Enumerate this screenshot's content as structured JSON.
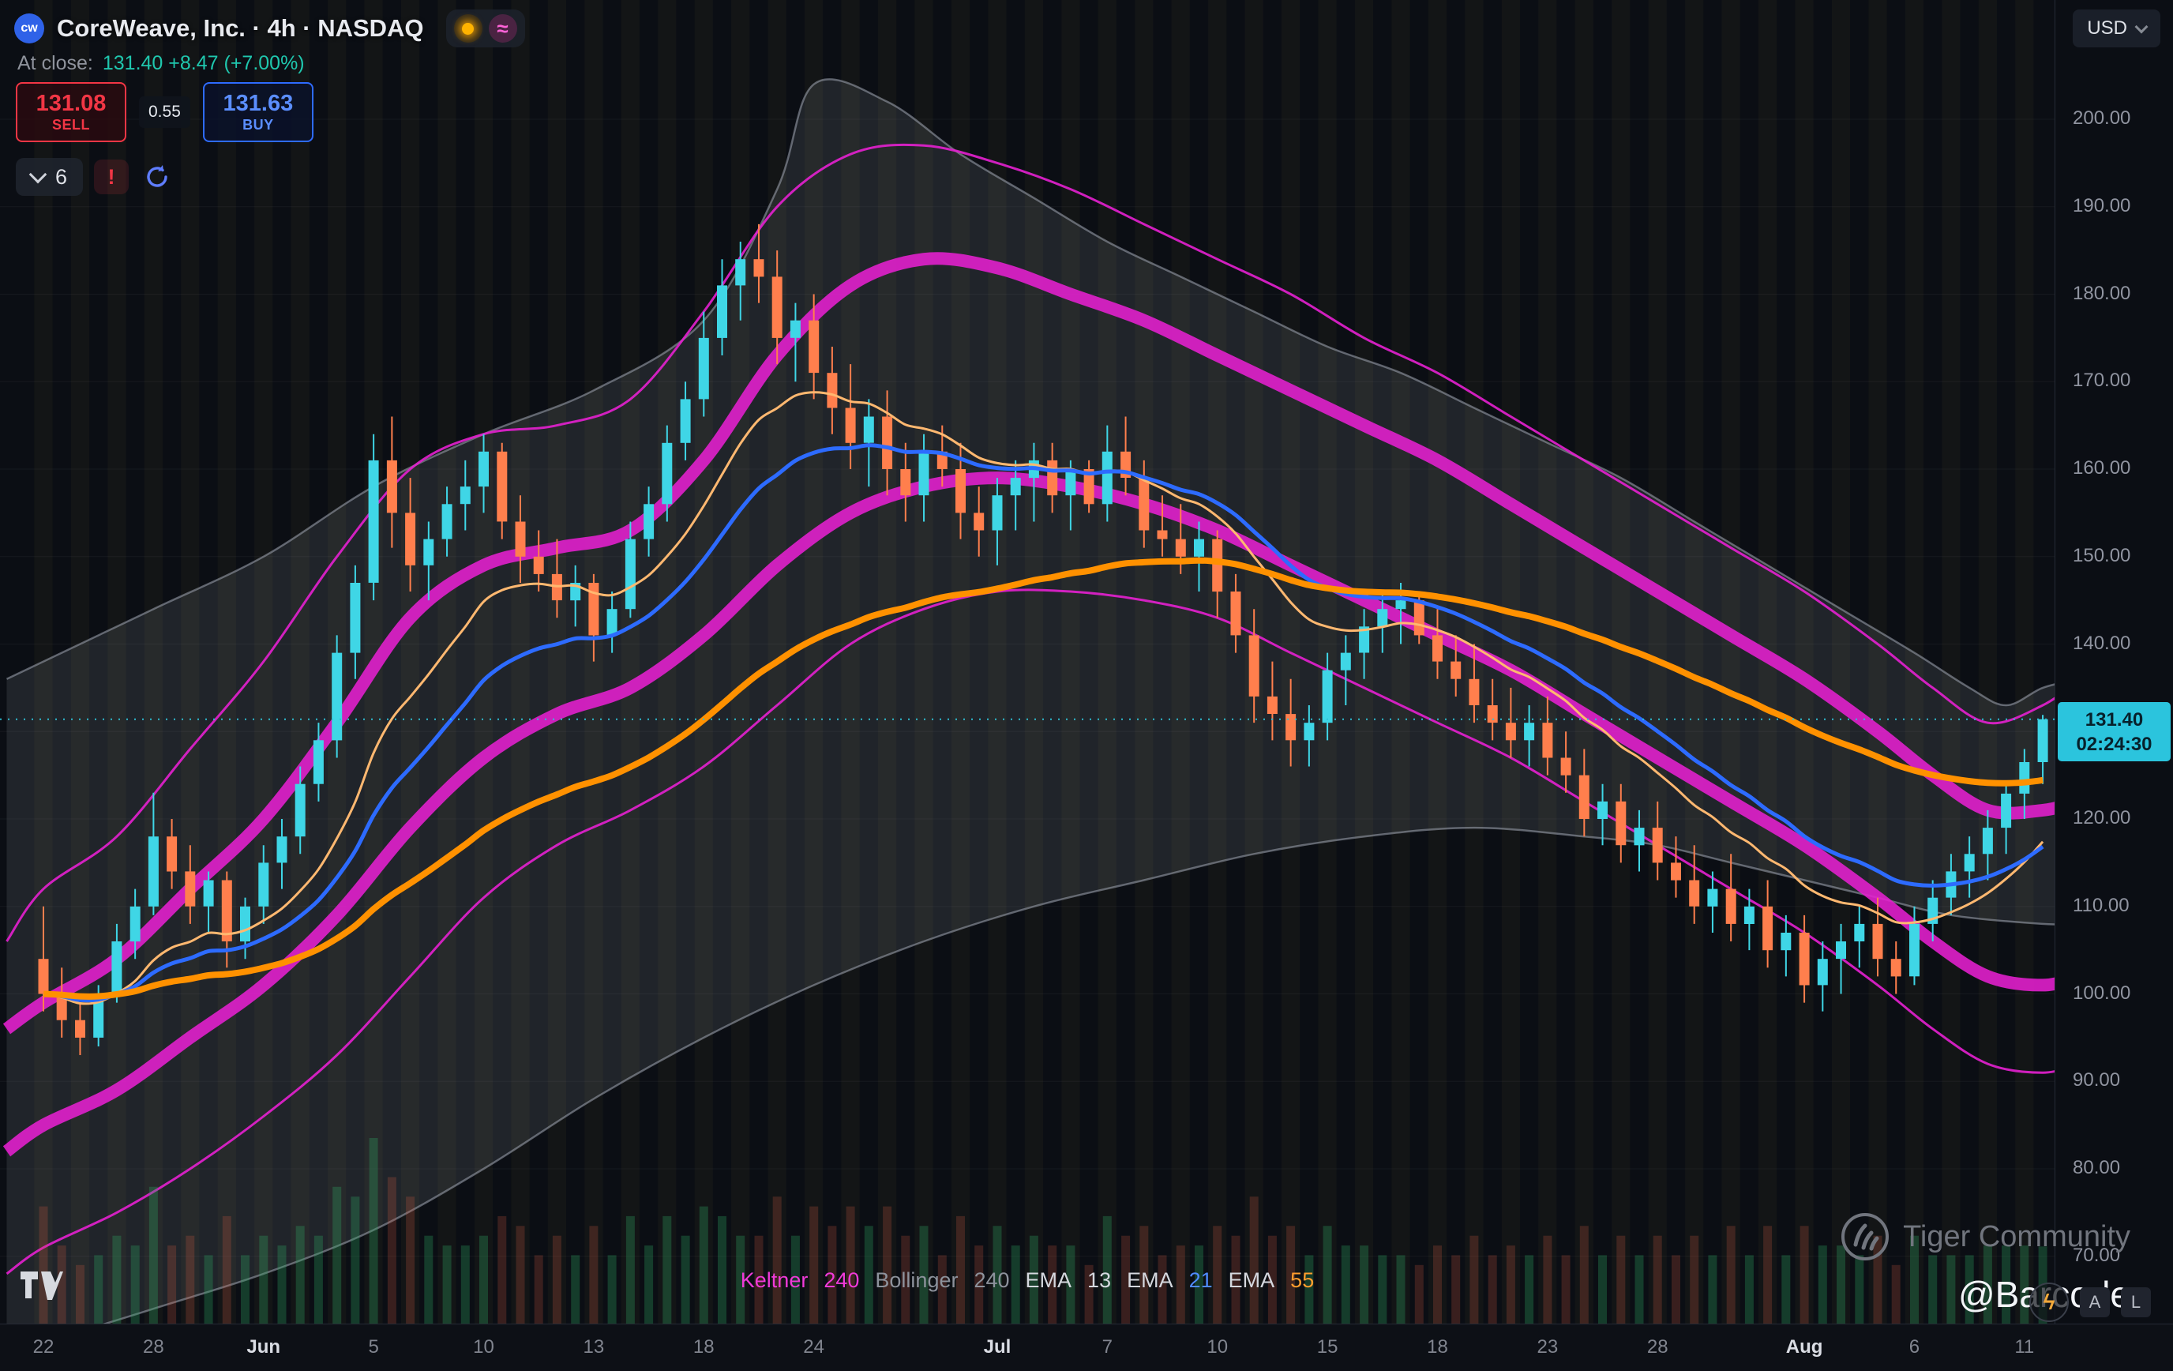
{
  "header": {
    "logo_text": "cw",
    "symbol_title": "CoreWeave, Inc. · 4h · NASDAQ",
    "at_close_label": "At close:",
    "close_summary": "131.40 +8.47 (+7.00%)",
    "sell_price": "131.08",
    "sell_label": "SELL",
    "spread": "0.55",
    "buy_price": "131.63",
    "buy_label": "BUY",
    "indicator_count": "6",
    "warning_glyph": "!",
    "currency": "USD"
  },
  "price_scale": {
    "ticks": [
      200,
      190,
      180,
      170,
      160,
      150,
      140,
      130,
      120,
      110,
      100,
      90,
      80,
      70
    ],
    "current": {
      "price": "131.40",
      "countdown": "02:24:30"
    }
  },
  "time_scale": {
    "ticks": [
      {
        "label": "22",
        "bar": 0
      },
      {
        "label": "28",
        "bar": 6
      },
      {
        "label": "Jun",
        "bar": 12,
        "major": true
      },
      {
        "label": "5",
        "bar": 18
      },
      {
        "label": "10",
        "bar": 24
      },
      {
        "label": "13",
        "bar": 30
      },
      {
        "label": "18",
        "bar": 36
      },
      {
        "label": "24",
        "bar": 42
      },
      {
        "label": "Jul",
        "bar": 52,
        "major": true
      },
      {
        "label": "7",
        "bar": 58
      },
      {
        "label": "10",
        "bar": 64
      },
      {
        "label": "15",
        "bar": 70
      },
      {
        "label": "18",
        "bar": 76
      },
      {
        "label": "23",
        "bar": 82
      },
      {
        "label": "28",
        "bar": 88
      },
      {
        "label": "Aug",
        "bar": 96,
        "major": true
      },
      {
        "label": "6",
        "bar": 102
      },
      {
        "label": "11",
        "bar": 108
      }
    ]
  },
  "legend": {
    "items": [
      {
        "label": "Keltner",
        "color": "#f03ad8"
      },
      {
        "label": "240",
        "color": "#f03ad8"
      },
      {
        "label": "Bollinger",
        "color": "#8d929c"
      },
      {
        "label": "240",
        "color": "#8d929c"
      },
      {
        "label": "EMA",
        "color": "#d5d8df"
      },
      {
        "label": "13",
        "color": "#d5d8df"
      },
      {
        "label": "EMA",
        "color": "#d5d8df"
      },
      {
        "label": "21",
        "color": "#4f8bff"
      },
      {
        "label": "EMA",
        "color": "#d5d8df"
      },
      {
        "label": "55",
        "color": "#ff9d2e"
      }
    ]
  },
  "watermark": {
    "community": "Tiger Community",
    "handle": "@Barcode"
  },
  "corner": {
    "a": "A",
    "l": "L"
  },
  "chart_data": {
    "type": "candlestick",
    "title": "CoreWeave, Inc. 4h with Keltner(240), Bollinger(240), EMA 13/21/55",
    "bar_count": 110,
    "current_price": 131.4,
    "prior_close": 122.93,
    "y_axis": {
      "min": 62,
      "max": 213.5,
      "tick_step": 10
    },
    "colors": {
      "up": "#3fd6e6",
      "down": "#ff7f4d",
      "keltner": "#e620d0",
      "bollinger": "#a3a8b4",
      "ema13": "#ffb870",
      "ema21": "#2d6bff",
      "ema55": "#ff9100",
      "current_line": "#2ec4d9"
    },
    "candles": [
      [
        104,
        110,
        98,
        100
      ],
      [
        100,
        103,
        95,
        97
      ],
      [
        97,
        99,
        93,
        95
      ],
      [
        95,
        101,
        94,
        100
      ],
      [
        100,
        108,
        99,
        106
      ],
      [
        106,
        112,
        104,
        110
      ],
      [
        110,
        123,
        109,
        118
      ],
      [
        118,
        120,
        112,
        114
      ],
      [
        114,
        117,
        108,
        110
      ],
      [
        110,
        114,
        107,
        113
      ],
      [
        113,
        114,
        103,
        106
      ],
      [
        106,
        111,
        104,
        110
      ],
      [
        110,
        117,
        108,
        115
      ],
      [
        115,
        120,
        112,
        118
      ],
      [
        118,
        126,
        116,
        124
      ],
      [
        124,
        131,
        122,
        129
      ],
      [
        129,
        141,
        127,
        139
      ],
      [
        139,
        149,
        136,
        147
      ],
      [
        147,
        164,
        145,
        161
      ],
      [
        161,
        166,
        151,
        155
      ],
      [
        155,
        159,
        146,
        149
      ],
      [
        149,
        154,
        145,
        152
      ],
      [
        152,
        158,
        150,
        156
      ],
      [
        156,
        161,
        153,
        158
      ],
      [
        158,
        164,
        155,
        162
      ],
      [
        162,
        163,
        152,
        154
      ],
      [
        154,
        157,
        147,
        150
      ],
      [
        150,
        153,
        146,
        148
      ],
      [
        148,
        152,
        143,
        145
      ],
      [
        145,
        149,
        142,
        147
      ],
      [
        147,
        148,
        138,
        141
      ],
      [
        141,
        146,
        139,
        144
      ],
      [
        144,
        154,
        143,
        152
      ],
      [
        152,
        158,
        150,
        156
      ],
      [
        156,
        165,
        154,
        163
      ],
      [
        163,
        170,
        161,
        168
      ],
      [
        168,
        178,
        166,
        175
      ],
      [
        175,
        184,
        173,
        181
      ],
      [
        181,
        186,
        177,
        184
      ],
      [
        184,
        188,
        179,
        182
      ],
      [
        182,
        185,
        172,
        175
      ],
      [
        175,
        179,
        170,
        177
      ],
      [
        177,
        180,
        168,
        171
      ],
      [
        171,
        174,
        164,
        167
      ],
      [
        167,
        172,
        160,
        163
      ],
      [
        163,
        168,
        158,
        166
      ],
      [
        166,
        169,
        157,
        160
      ],
      [
        160,
        163,
        154,
        157
      ],
      [
        157,
        164,
        154,
        162
      ],
      [
        162,
        165,
        158,
        160
      ],
      [
        160,
        163,
        152,
        155
      ],
      [
        155,
        158,
        150,
        153
      ],
      [
        153,
        159,
        149,
        157
      ],
      [
        157,
        161,
        153,
        159
      ],
      [
        159,
        163,
        154,
        161
      ],
      [
        161,
        163,
        155,
        157
      ],
      [
        157,
        161,
        153,
        160
      ],
      [
        160,
        161,
        155,
        156
      ],
      [
        156,
        165,
        154,
        162
      ],
      [
        162,
        166,
        157,
        159
      ],
      [
        159,
        161,
        151,
        153
      ],
      [
        153,
        157,
        150,
        152
      ],
      [
        152,
        156,
        148,
        150
      ],
      [
        150,
        154,
        146,
        152
      ],
      [
        152,
        153,
        143,
        146
      ],
      [
        146,
        148,
        139,
        141
      ],
      [
        141,
        144,
        131,
        134
      ],
      [
        134,
        138,
        129,
        132
      ],
      [
        132,
        136,
        126,
        129
      ],
      [
        129,
        133,
        126,
        131
      ],
      [
        131,
        139,
        129,
        137
      ],
      [
        137,
        141,
        133,
        139
      ],
      [
        139,
        144,
        136,
        142
      ],
      [
        142,
        146,
        139,
        144
      ],
      [
        144,
        147,
        140,
        145
      ],
      [
        145,
        146,
        140,
        141
      ],
      [
        141,
        144,
        136,
        138
      ],
      [
        138,
        141,
        134,
        136
      ],
      [
        136,
        140,
        131,
        133
      ],
      [
        133,
        136,
        129,
        131
      ],
      [
        131,
        135,
        127,
        129
      ],
      [
        129,
        133,
        126,
        131
      ],
      [
        131,
        134,
        125,
        127
      ],
      [
        127,
        130,
        123,
        125
      ],
      [
        125,
        128,
        118,
        120
      ],
      [
        120,
        124,
        117,
        122
      ],
      [
        122,
        124,
        115,
        117
      ],
      [
        117,
        121,
        114,
        119
      ],
      [
        119,
        122,
        113,
        115
      ],
      [
        115,
        118,
        111,
        113
      ],
      [
        113,
        117,
        108,
        110
      ],
      [
        110,
        114,
        107,
        112
      ],
      [
        112,
        116,
        106,
        108
      ],
      [
        108,
        112,
        105,
        110
      ],
      [
        110,
        113,
        103,
        105
      ],
      [
        105,
        109,
        102,
        107
      ],
      [
        107,
        109,
        99,
        101
      ],
      [
        101,
        106,
        98,
        104
      ],
      [
        104,
        108,
        100,
        106
      ],
      [
        106,
        110,
        103,
        108
      ],
      [
        108,
        111,
        102,
        104
      ],
      [
        104,
        106,
        100,
        102
      ],
      [
        102,
        110,
        101,
        108
      ],
      [
        108,
        113,
        106,
        111
      ],
      [
        111,
        116,
        109,
        114
      ],
      [
        114,
        118,
        111,
        116
      ],
      [
        116,
        121,
        113,
        119
      ],
      [
        119,
        124,
        116,
        122.9
      ],
      [
        122.9,
        128,
        120,
        126.5
      ],
      [
        126.5,
        131.9,
        124,
        131.4
      ]
    ],
    "emas": [
      {
        "period": 13
      },
      {
        "period": 21
      },
      {
        "period": 55
      }
    ],
    "bands": {
      "keltner_outer_upper": [
        [
          -2,
          106
        ],
        [
          0,
          112
        ],
        [
          4,
          118
        ],
        [
          8,
          128
        ],
        [
          12,
          138
        ],
        [
          16,
          150
        ],
        [
          20,
          160
        ],
        [
          24,
          164
        ],
        [
          28,
          165
        ],
        [
          32,
          168
        ],
        [
          36,
          178
        ],
        [
          40,
          190
        ],
        [
          44,
          196
        ],
        [
          48,
          197
        ],
        [
          52,
          195
        ],
        [
          56,
          192
        ],
        [
          60,
          188
        ],
        [
          64,
          184
        ],
        [
          68,
          180
        ],
        [
          72,
          175
        ],
        [
          76,
          171
        ],
        [
          80,
          166
        ],
        [
          84,
          161
        ],
        [
          88,
          156
        ],
        [
          92,
          151
        ],
        [
          96,
          146
        ],
        [
          100,
          140
        ],
        [
          103,
          135
        ],
        [
          106,
          131
        ],
        [
          109,
          133
        ],
        [
          111,
          136
        ]
      ],
      "keltner_band_upper": [
        [
          -2,
          96
        ],
        [
          0,
          99
        ],
        [
          4,
          104
        ],
        [
          8,
          112
        ],
        [
          12,
          120
        ],
        [
          16,
          131
        ],
        [
          20,
          143
        ],
        [
          24,
          149
        ],
        [
          28,
          151
        ],
        [
          32,
          153
        ],
        [
          36,
          161
        ],
        [
          40,
          173
        ],
        [
          44,
          181
        ],
        [
          48,
          184
        ],
        [
          52,
          183
        ],
        [
          56,
          180
        ],
        [
          60,
          177
        ],
        [
          64,
          173
        ],
        [
          68,
          169
        ],
        [
          72,
          165
        ],
        [
          76,
          161
        ],
        [
          80,
          156
        ],
        [
          84,
          151
        ],
        [
          88,
          146
        ],
        [
          92,
          141
        ],
        [
          96,
          136
        ],
        [
          100,
          130
        ],
        [
          103,
          125
        ],
        [
          106,
          121
        ],
        [
          109,
          121
        ],
        [
          111,
          122
        ]
      ],
      "keltner_band_lower": [
        [
          -2,
          82
        ],
        [
          0,
          85
        ],
        [
          4,
          89
        ],
        [
          8,
          95
        ],
        [
          12,
          101
        ],
        [
          16,
          109
        ],
        [
          20,
          119
        ],
        [
          24,
          127
        ],
        [
          28,
          132
        ],
        [
          32,
          135
        ],
        [
          36,
          141
        ],
        [
          40,
          149
        ],
        [
          44,
          155
        ],
        [
          48,
          158
        ],
        [
          52,
          159
        ],
        [
          56,
          158
        ],
        [
          60,
          156
        ],
        [
          64,
          153
        ],
        [
          68,
          149
        ],
        [
          72,
          145
        ],
        [
          76,
          141
        ],
        [
          80,
          137
        ],
        [
          84,
          132
        ],
        [
          88,
          127
        ],
        [
          92,
          122
        ],
        [
          96,
          117
        ],
        [
          100,
          111
        ],
        [
          103,
          106
        ],
        [
          106,
          102
        ],
        [
          109,
          101
        ],
        [
          111,
          102
        ]
      ],
      "keltner_outer_lower": [
        [
          -2,
          68
        ],
        [
          0,
          71
        ],
        [
          4,
          75
        ],
        [
          8,
          80
        ],
        [
          12,
          86
        ],
        [
          16,
          93
        ],
        [
          20,
          102
        ],
        [
          24,
          111
        ],
        [
          28,
          117
        ],
        [
          32,
          121
        ],
        [
          36,
          126
        ],
        [
          40,
          133
        ],
        [
          44,
          140
        ],
        [
          48,
          144
        ],
        [
          52,
          146
        ],
        [
          56,
          146
        ],
        [
          60,
          145
        ],
        [
          64,
          143
        ],
        [
          68,
          139
        ],
        [
          72,
          135
        ],
        [
          76,
          131
        ],
        [
          80,
          127
        ],
        [
          84,
          122
        ],
        [
          88,
          117
        ],
        [
          92,
          112
        ],
        [
          96,
          107
        ],
        [
          100,
          101
        ],
        [
          103,
          96
        ],
        [
          106,
          92
        ],
        [
          109,
          91
        ],
        [
          111,
          92
        ]
      ],
      "bollinger_upper": [
        [
          -2,
          136
        ],
        [
          0,
          138
        ],
        [
          6,
          144
        ],
        [
          12,
          150
        ],
        [
          18,
          158
        ],
        [
          24,
          164
        ],
        [
          30,
          169
        ],
        [
          36,
          177
        ],
        [
          40,
          192
        ],
        [
          42,
          204
        ],
        [
          46,
          202
        ],
        [
          50,
          196
        ],
        [
          54,
          191
        ],
        [
          58,
          186
        ],
        [
          62,
          182
        ],
        [
          66,
          178
        ],
        [
          70,
          174
        ],
        [
          74,
          171
        ],
        [
          78,
          167
        ],
        [
          82,
          163
        ],
        [
          86,
          159
        ],
        [
          90,
          154
        ],
        [
          94,
          149
        ],
        [
          98,
          144
        ],
        [
          102,
          139
        ],
        [
          105,
          135
        ],
        [
          107,
          133
        ],
        [
          109,
          135
        ],
        [
          111,
          136
        ]
      ],
      "bollinger_lower": [
        [
          -2,
          58
        ],
        [
          0,
          60
        ],
        [
          6,
          64
        ],
        [
          12,
          68
        ],
        [
          18,
          73
        ],
        [
          24,
          80
        ],
        [
          30,
          88
        ],
        [
          36,
          95
        ],
        [
          42,
          101
        ],
        [
          48,
          106
        ],
        [
          54,
          110
        ],
        [
          60,
          113
        ],
        [
          66,
          116
        ],
        [
          72,
          118
        ],
        [
          78,
          119
        ],
        [
          84,
          118
        ],
        [
          88,
          117
        ],
        [
          92,
          115
        ],
        [
          96,
          113
        ],
        [
          100,
          111
        ],
        [
          104,
          109
        ],
        [
          109,
          108
        ],
        [
          111,
          108
        ]
      ]
    }
  }
}
